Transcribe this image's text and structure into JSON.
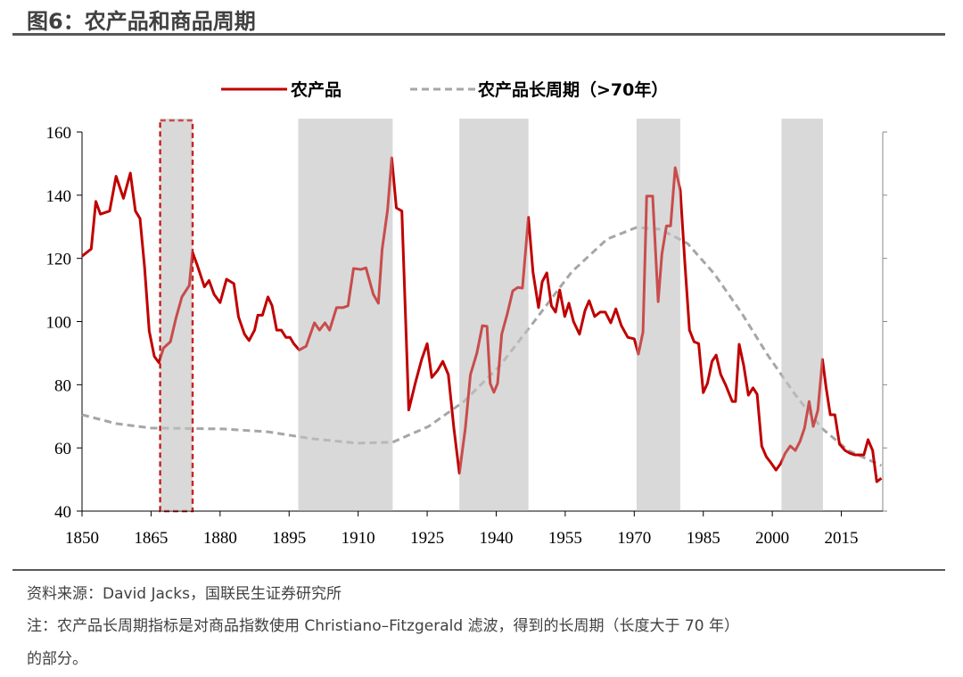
{
  "header": {
    "title": "图6：农产品和商品周期"
  },
  "chart_data": {
    "type": "line",
    "xlim": [
      1850,
      2024
    ],
    "xticks": [
      1850,
      1865,
      1880,
      1895,
      1910,
      1925,
      1940,
      1955,
      1970,
      1985,
      2000,
      2015
    ],
    "ylim": [
      40,
      160
    ],
    "yticks": [
      40,
      60,
      80,
      100,
      120,
      140,
      160
    ],
    "legend": "top",
    "shaded_periods": [
      {
        "start": 1867,
        "end": 1874,
        "highlight": true
      },
      {
        "start": 1897,
        "end": 1917.5
      },
      {
        "start": 1932,
        "end": 1947
      },
      {
        "start": 1970.5,
        "end": 1980
      },
      {
        "start": 2002,
        "end": 2011
      }
    ],
    "series": [
      {
        "name": "农产品",
        "color": "#c00000",
        "dash": false,
        "x": [
          1850,
          1852,
          1853,
          1854,
          1856,
          1857.4,
          1859,
          1860.5,
          1861.6,
          1862.6,
          1863.6,
          1864.6,
          1865.7,
          1866.7,
          1867.7,
          1869.2,
          1870.4,
          1871.7,
          1873.3,
          1874,
          1875,
          1876.6,
          1877.6,
          1878.7,
          1880,
          1881.4,
          1883,
          1884,
          1885.3,
          1886.3,
          1887.5,
          1888.2,
          1889.2,
          1890.4,
          1891.3,
          1892.3,
          1893.3,
          1894.3,
          1895.2,
          1896,
          1897.2,
          1898.7,
          1900.5,
          1901.6,
          1902.8,
          1903.8,
          1905.3,
          1906.7,
          1907.8,
          1909,
          1910.6,
          1911.7,
          1913.3,
          1914.4,
          1915.2,
          1916.4,
          1917.3,
          1918.3,
          1919.5,
          1921,
          1922.4,
          1923.8,
          1925,
          1926,
          1927.3,
          1928.4,
          1929.6,
          1930.8,
          1932,
          1933.3,
          1934.4,
          1935.8,
          1937,
          1938,
          1938.7,
          1939.5,
          1940.3,
          1941.2,
          1942.4,
          1943.6,
          1944.7,
          1945.7,
          1947,
          1948,
          1949.2,
          1950,
          1951,
          1952,
          1952.9,
          1953.8,
          1954.9,
          1955.8,
          1956.8,
          1958.1,
          1959.3,
          1960.2,
          1961.4,
          1962.6,
          1963.7,
          1964.9,
          1966,
          1967.2,
          1968.6,
          1970,
          1970.9,
          1971.9,
          1972.7,
          1974,
          1975.2,
          1976,
          1977,
          1977.9,
          1978.9,
          1980,
          1981,
          1982,
          1983,
          1984,
          1985,
          1985.9,
          1986.9,
          1987.8,
          1988.8,
          1989.9,
          1991.3,
          1992,
          1992.8,
          1993.8,
          1994.8,
          1995.8,
          1996.7,
          1997.7,
          1998.7,
          1999.6,
          2000.8,
          2001.8,
          2002.8,
          2003.9,
          2005,
          2006,
          2007,
          2008,
          2008.9,
          2009.9,
          2010.9,
          2011.7,
          2012.6,
          2013.6,
          2014.6,
          2015.8,
          2016.9,
          2017.9,
          2018.9,
          2019.9,
          2020.8,
          2021.8,
          2022.7,
          2023.7
        ],
        "values": [
          120.7,
          123,
          138,
          134,
          135,
          146,
          139,
          147,
          135,
          132.6,
          117,
          97,
          89,
          87,
          91.6,
          93.6,
          101,
          107.8,
          111.4,
          122,
          118,
          111,
          113,
          108.6,
          106,
          113.4,
          112,
          101.5,
          96,
          94,
          97.3,
          102,
          102,
          107.8,
          105,
          97.3,
          97.3,
          95,
          95,
          93,
          91,
          92.2,
          99.6,
          97.3,
          99.6,
          97.3,
          104.4,
          104.4,
          105,
          116.8,
          116.5,
          117,
          108.6,
          105.8,
          122.7,
          135.4,
          151.8,
          136,
          135,
          72,
          80.4,
          88,
          93,
          82.3,
          84.6,
          87.4,
          83.2,
          66.3,
          52,
          66.3,
          83.2,
          90,
          98.7,
          98.5,
          80.4,
          77.6,
          80.4,
          96,
          102.4,
          109.7,
          110.8,
          110.6,
          133,
          115.6,
          104.4,
          112.6,
          115.4,
          105,
          103,
          110,
          101.6,
          105.8,
          100,
          96,
          103.5,
          106.6,
          101.6,
          103,
          103,
          99.6,
          104,
          98.7,
          95,
          94.5,
          89.7,
          96.7,
          139.7,
          139.7,
          106.3,
          121.3,
          130.3,
          130.3,
          148.7,
          141.6,
          118.5,
          97.3,
          93.6,
          93,
          77.5,
          80.4,
          87.4,
          89.4,
          83.2,
          79.8,
          74.7,
          74.7,
          92.8,
          86,
          76.7,
          79,
          77,
          60.6,
          57.2,
          55.5,
          53,
          55,
          58.3,
          60.6,
          59.2,
          62,
          66.3,
          74.7,
          66.8,
          71.9,
          88,
          79,
          70.5,
          70.5,
          61.2,
          59.2,
          58.3,
          57.8,
          57.8,
          57.8,
          62.6,
          59.2,
          49.3,
          50.4
        ]
      },
      {
        "name": "农产品长周期（>70年）",
        "color": "#a6a6a6",
        "dash": true,
        "x": [
          1850,
          1857.4,
          1865,
          1880.7,
          1890.4,
          1900,
          1909.8,
          1917.5,
          1925.3,
          1933,
          1940.8,
          1948.6,
          1956.4,
          1964.1,
          1970.5,
          1975.7,
          1981.6,
          1987.4,
          1993.2,
          1999,
          2004.9,
          2010.7,
          2016.5,
          2023.7
        ],
        "values": [
          70.5,
          67.7,
          66.3,
          66,
          65.1,
          62.9,
          61.5,
          61.8,
          66.8,
          74.7,
          86,
          100.7,
          115.7,
          126.1,
          129.8,
          129.2,
          124.7,
          115.1,
          103,
          89.4,
          77,
          66.3,
          59.2,
          54.4
        ]
      }
    ]
  },
  "footer": {
    "source": "资料来源：David Jacks，国联民生证券研究所",
    "note": "注：农产品长周期指标是对商品指数使用 Christiano–Fitzgerald 滤波，得到的长周期（长度大于 70 年）",
    "note_cont": "的部分。"
  }
}
